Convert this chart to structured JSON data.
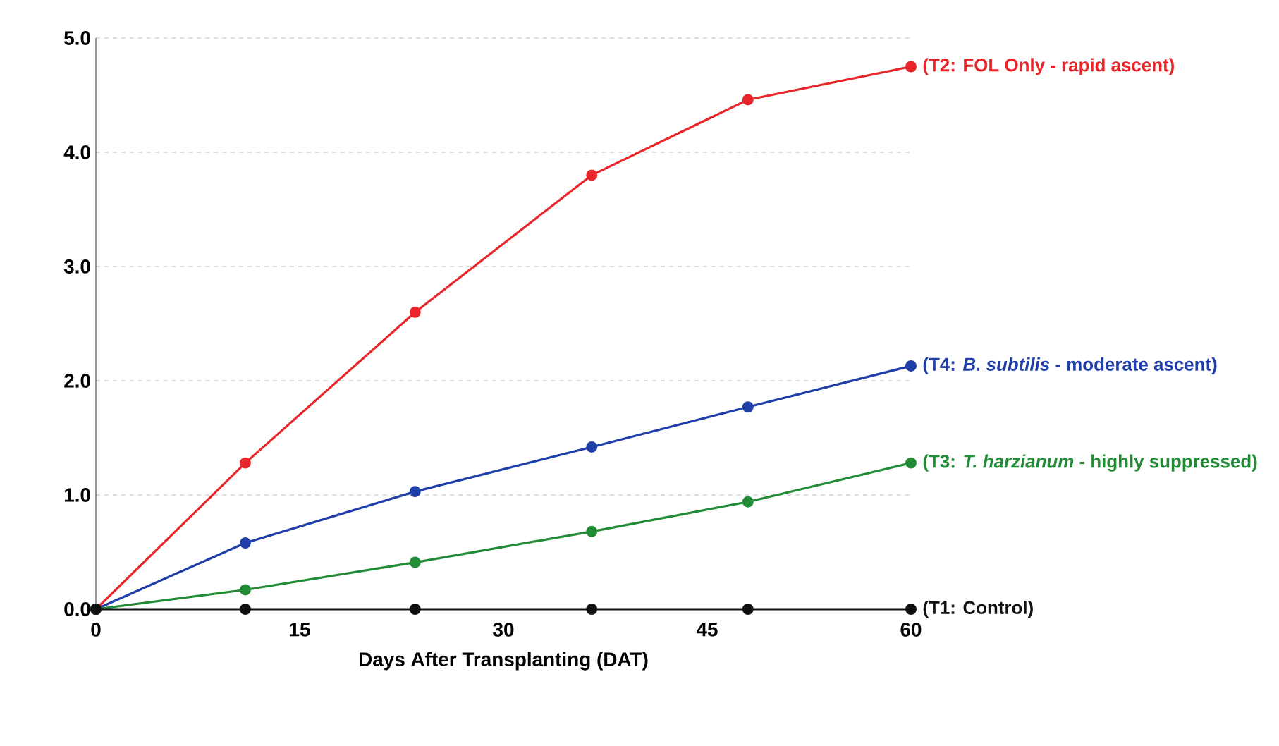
{
  "chart_data": {
    "type": "line",
    "xlabel": "Days After Transplanting (DAT)",
    "x": [
      0,
      11,
      23.5,
      36.5,
      48,
      60
    ],
    "series": [
      {
        "name": "(T2: FOL Only - rapid ascent)",
        "color": "#e8262a",
        "values": [
          0,
          1.28,
          2.6,
          3.8,
          4.46,
          4.75
        ]
      },
      {
        "name": "(T4: *B. subtilis* - moderate ascent)",
        "color": "#1f3ea8",
        "values": [
          0,
          0.58,
          1.03,
          1.42,
          1.77,
          2.13
        ]
      },
      {
        "name": "(T3: *T. harzianum* - highly suppressed)",
        "color": "#228b35",
        "values": [
          0,
          0.17,
          0.41,
          0.68,
          0.94,
          1.28
        ]
      },
      {
        "name": "(T1: Control)",
        "color": "#111111",
        "values": [
          0,
          0,
          0,
          0,
          0,
          0
        ]
      }
    ],
    "xlim": [
      0,
      60
    ],
    "xticks": [
      0,
      15,
      30,
      45,
      60
    ],
    "ylim": [
      0,
      5
    ],
    "yticks": [
      {
        "value": 0,
        "label": "0.0"
      },
      {
        "value": 1,
        "label": "1.0"
      },
      {
        "value": 2,
        "label": "2.0"
      },
      {
        "value": 3,
        "label": "3.0"
      },
      {
        "value": 4,
        "label": "4.0"
      },
      {
        "value": 5,
        "label": "5.0"
      }
    ],
    "grid": "y",
    "marker": "circle",
    "line_style": "solid"
  }
}
